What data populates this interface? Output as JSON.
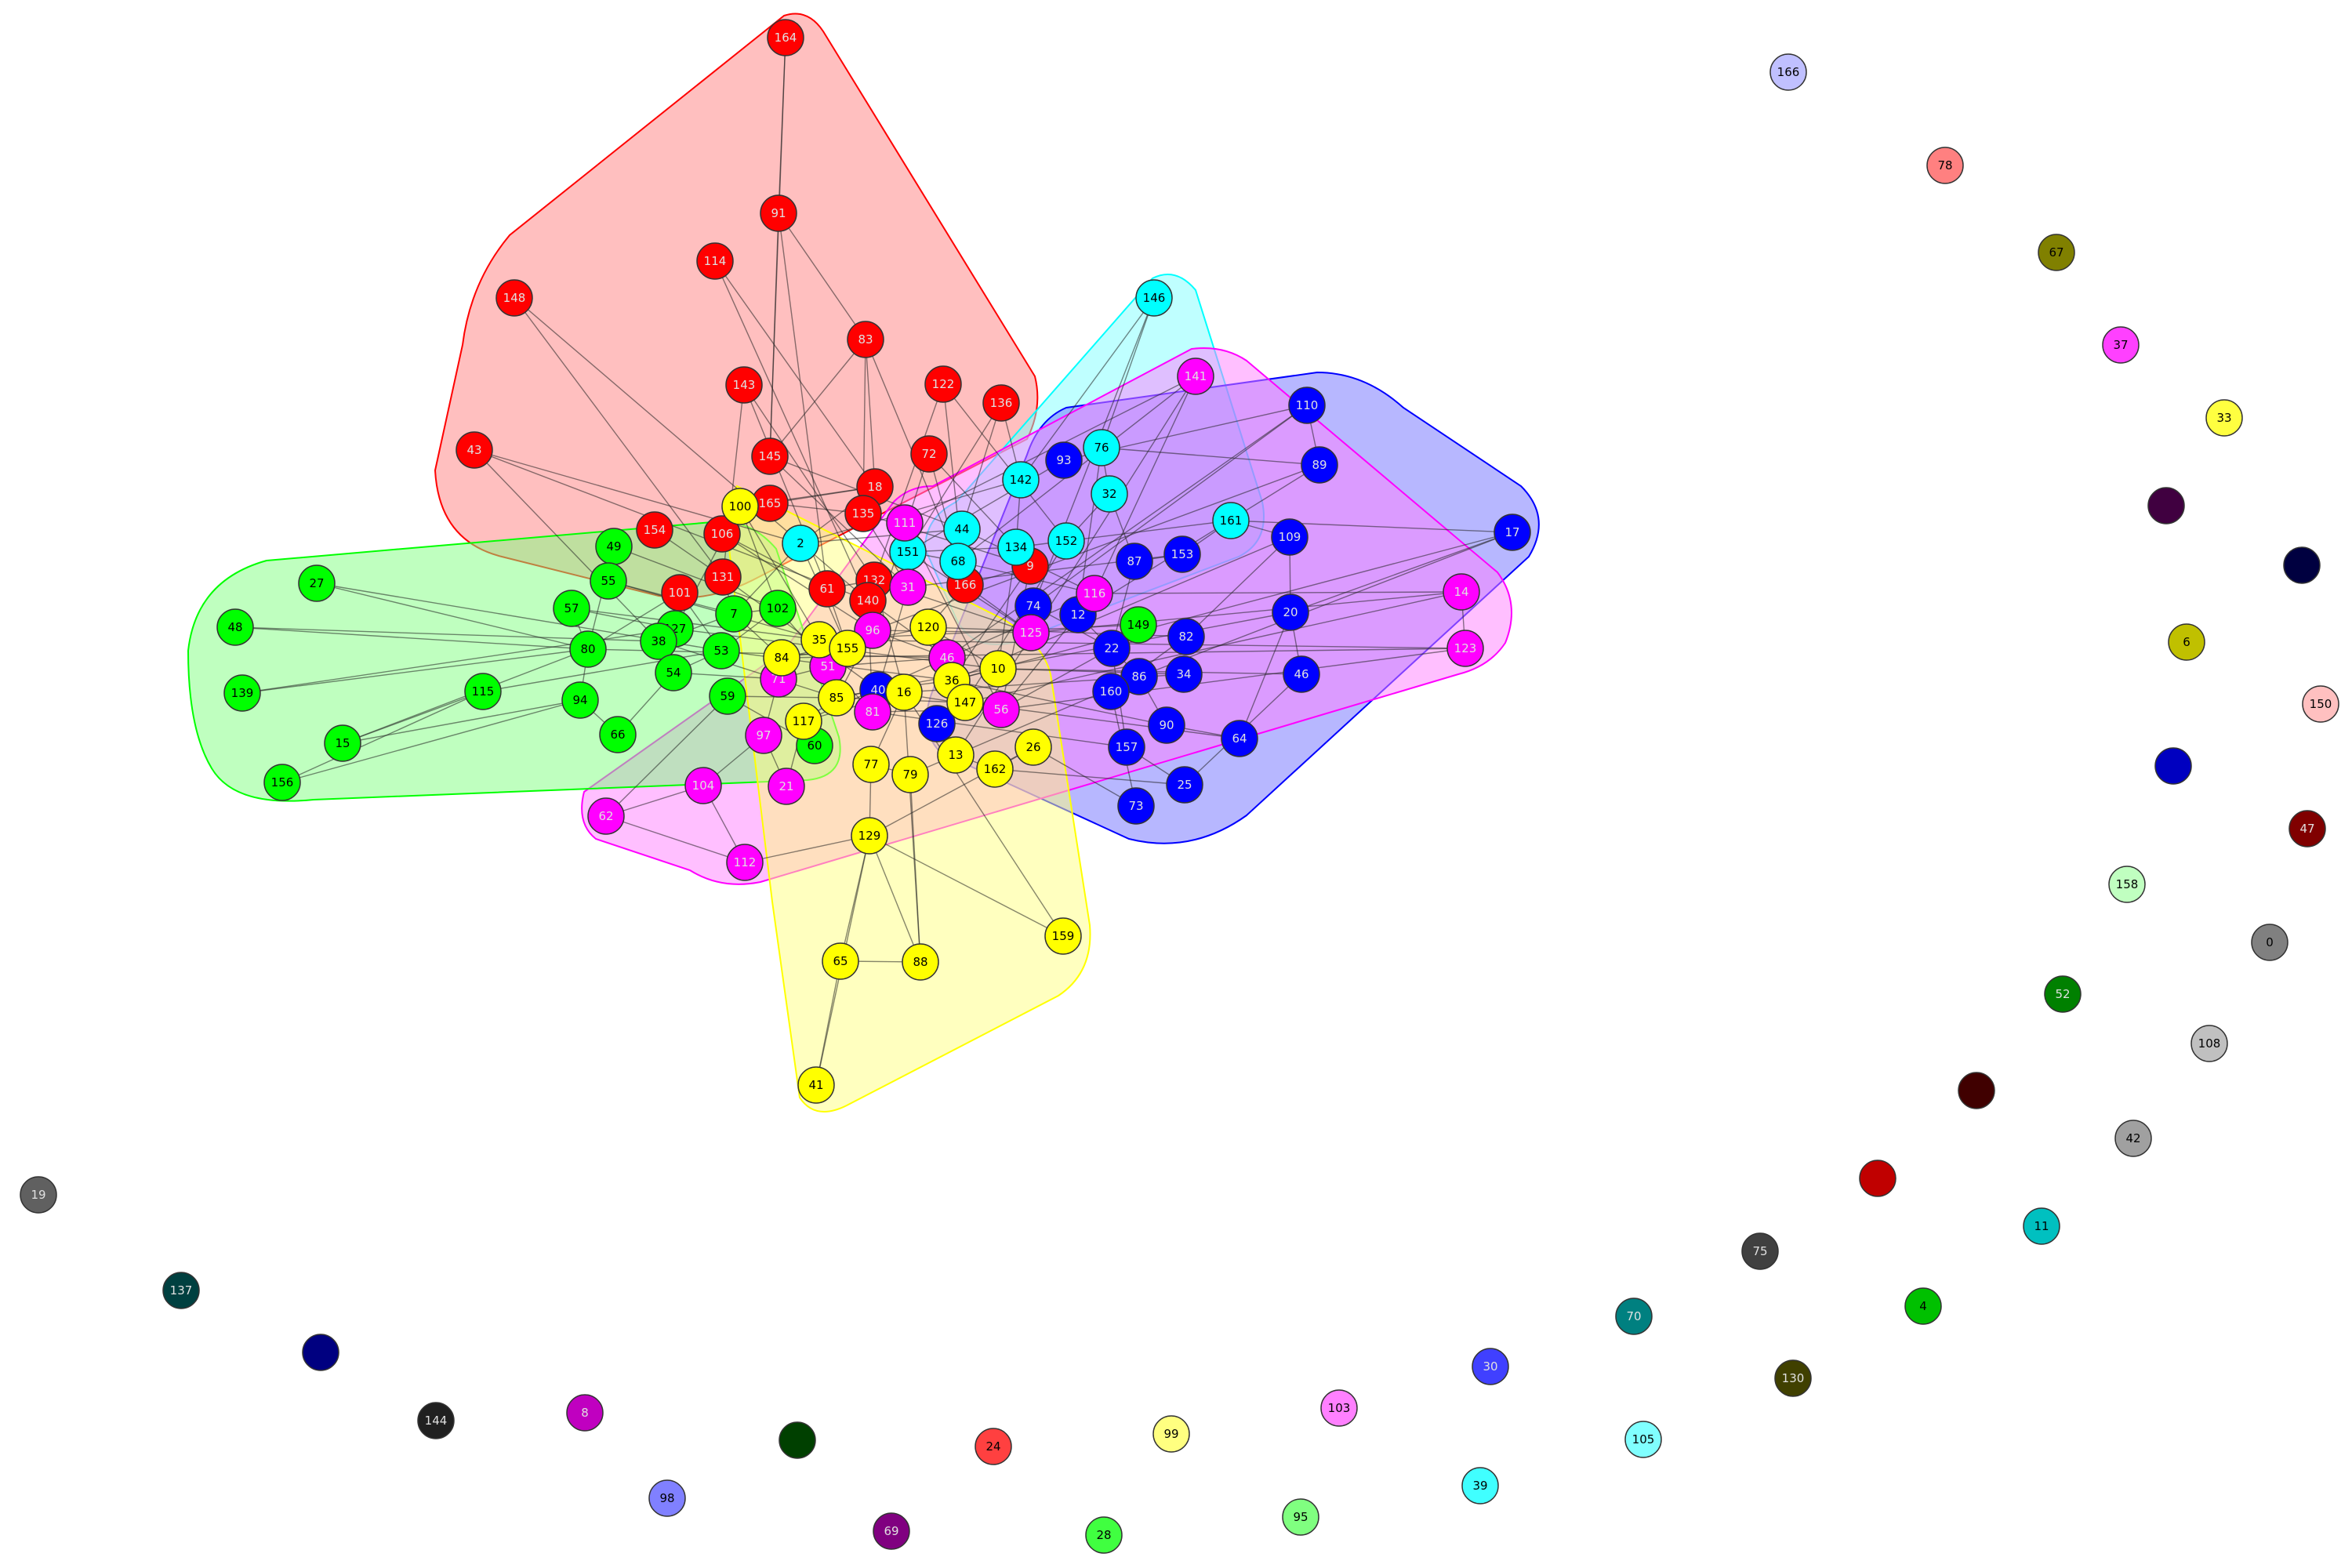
{
  "graph": {
    "type": "community-network",
    "communities": [
      {
        "name": "red",
        "color": "#ff0000",
        "fill": "#ff8080",
        "members": [
          "164",
          "91",
          "114",
          "148",
          "83",
          "143",
          "122",
          "136",
          "43",
          "145",
          "72",
          "18",
          "165",
          "135",
          "154",
          "106",
          "101",
          "131",
          "61",
          "132",
          "140",
          "166",
          "9"
        ]
      },
      {
        "name": "cyan",
        "color": "#00ffff",
        "fill": "#80ffff",
        "members": [
          "146",
          "76",
          "142",
          "32",
          "2",
          "44",
          "68",
          "151",
          "134",
          "152",
          "161"
        ]
      },
      {
        "name": "blue",
        "color": "#0000ff",
        "fill": "#6060ff",
        "members": [
          "110",
          "93",
          "89",
          "17",
          "109",
          "153",
          "87",
          "74",
          "12",
          "20",
          "82",
          "2b",
          "86",
          "46",
          "160",
          "90",
          "157",
          "64",
          "25",
          "73",
          "126"
        ]
      },
      {
        "name": "magenta",
        "color": "#ff00ff",
        "fill": "#ff80ff",
        "members": [
          "141",
          "111",
          "31",
          "116",
          "14",
          "123",
          "125",
          "96",
          "46m",
          "51",
          "71",
          "56",
          "97",
          "104",
          "21",
          "62",
          "112",
          "81"
        ]
      },
      {
        "name": "green",
        "color": "#00ff00",
        "fill": "#80ff80",
        "members": [
          "49",
          "55",
          "27",
          "48",
          "57",
          "80",
          "127",
          "38",
          "7",
          "102",
          "53",
          "54",
          "139",
          "115",
          "94",
          "59",
          "66",
          "15",
          "156",
          "60",
          "149"
        ]
      },
      {
        "name": "yellow",
        "color": "#ffff00",
        "fill": "#ffff80",
        "members": [
          "100",
          "35",
          "155",
          "84",
          "120",
          "10",
          "36",
          "147",
          "85",
          "117",
          "16",
          "77",
          "79",
          "13",
          "162",
          "26",
          "129",
          "65",
          "88",
          "159",
          "41"
        ]
      }
    ],
    "nodes": [
      {
        "id": "164",
        "label": "164",
        "color": "#ff0000"
      },
      {
        "id": "91",
        "label": "91",
        "color": "#ff0000"
      },
      {
        "id": "114",
        "label": "114",
        "color": "#ff0000"
      },
      {
        "id": "148",
        "label": "148",
        "color": "#ff0000"
      },
      {
        "id": "83",
        "label": "83",
        "color": "#ff0000"
      },
      {
        "id": "143",
        "label": "143",
        "color": "#ff0000"
      },
      {
        "id": "122",
        "label": "122",
        "color": "#ff0000"
      },
      {
        "id": "136",
        "label": "136",
        "color": "#ff0000"
      },
      {
        "id": "43",
        "label": "43",
        "color": "#ff0000"
      },
      {
        "id": "145",
        "label": "145",
        "color": "#ff0000"
      },
      {
        "id": "72",
        "label": "72",
        "color": "#ff0000"
      },
      {
        "id": "18",
        "label": "18",
        "color": "#ff0000"
      },
      {
        "id": "165",
        "label": "165",
        "color": "#ff0000"
      },
      {
        "id": "135",
        "label": "135",
        "color": "#ff0000"
      },
      {
        "id": "154",
        "label": "154",
        "color": "#ff0000"
      },
      {
        "id": "106",
        "label": "106",
        "color": "#ff0000"
      },
      {
        "id": "101",
        "label": "101",
        "color": "#ff0000"
      },
      {
        "id": "131",
        "label": "131",
        "color": "#ff0000"
      },
      {
        "id": "61",
        "label": "61",
        "color": "#ff0000"
      },
      {
        "id": "132",
        "label": "132",
        "color": "#ff0000"
      },
      {
        "id": "140",
        "label": "140",
        "color": "#ff0000"
      },
      {
        "id": "166r",
        "label": "166",
        "color": "#ff0000"
      },
      {
        "id": "9",
        "label": "9",
        "color": "#ff0000"
      },
      {
        "id": "146",
        "label": "146",
        "color": "#00ffff"
      },
      {
        "id": "76",
        "label": "76",
        "color": "#00ffff"
      },
      {
        "id": "142",
        "label": "142",
        "color": "#00ffff"
      },
      {
        "id": "32",
        "label": "32",
        "color": "#00ffff"
      },
      {
        "id": "2",
        "label": "2",
        "color": "#00ffff"
      },
      {
        "id": "44",
        "label": "44",
        "color": "#00ffff"
      },
      {
        "id": "68",
        "label": "68",
        "color": "#00ffff"
      },
      {
        "id": "151",
        "label": "151",
        "color": "#00ffff"
      },
      {
        "id": "134",
        "label": "134",
        "color": "#00ffff"
      },
      {
        "id": "152",
        "label": "152",
        "color": "#00ffff"
      },
      {
        "id": "161",
        "label": "161",
        "color": "#00ffff"
      },
      {
        "id": "110",
        "label": "110",
        "color": "#0000ff"
      },
      {
        "id": "93",
        "label": "93",
        "color": "#0000ff"
      },
      {
        "id": "89",
        "label": "89",
        "color": "#0000ff"
      },
      {
        "id": "17",
        "label": "17",
        "color": "#0000ff"
      },
      {
        "id": "109",
        "label": "109",
        "color": "#0000ff"
      },
      {
        "id": "153",
        "label": "153",
        "color": "#0000ff"
      },
      {
        "id": "87",
        "label": "87",
        "color": "#0000ff"
      },
      {
        "id": "74",
        "label": "74",
        "color": "#0000ff"
      },
      {
        "id": "12",
        "label": "12",
        "color": "#0000ff"
      },
      {
        "id": "20",
        "label": "20",
        "color": "#0000ff"
      },
      {
        "id": "82",
        "label": "82",
        "color": "#0000ff"
      },
      {
        "id": "22",
        "label": "22",
        "color": "#0000ff"
      },
      {
        "id": "86",
        "label": "86",
        "color": "#0000ff"
      },
      {
        "id": "46b",
        "label": "46",
        "color": "#0000ff"
      },
      {
        "id": "160",
        "label": "160",
        "color": "#0000ff"
      },
      {
        "id": "90",
        "label": "90",
        "color": "#0000ff"
      },
      {
        "id": "157",
        "label": "157",
        "color": "#0000ff"
      },
      {
        "id": "64",
        "label": "64",
        "color": "#0000ff"
      },
      {
        "id": "25",
        "label": "25",
        "color": "#0000ff"
      },
      {
        "id": "73",
        "label": "73",
        "color": "#0000ff"
      },
      {
        "id": "126",
        "label": "126",
        "color": "#0000ff"
      },
      {
        "id": "40",
        "label": "40",
        "color": "#0000ff"
      },
      {
        "id": "34",
        "label": "34",
        "color": "#0000ff"
      },
      {
        "id": "141",
        "label": "141",
        "color": "#ff00ff"
      },
      {
        "id": "111",
        "label": "111",
        "color": "#ff00ff"
      },
      {
        "id": "31",
        "label": "31",
        "color": "#ff00ff"
      },
      {
        "id": "116",
        "label": "116",
        "color": "#ff00ff"
      },
      {
        "id": "14",
        "label": "14",
        "color": "#ff00ff"
      },
      {
        "id": "123",
        "label": "123",
        "color": "#ff00ff"
      },
      {
        "id": "125",
        "label": "125",
        "color": "#ff00ff"
      },
      {
        "id": "96",
        "label": "96",
        "color": "#ff00ff"
      },
      {
        "id": "46",
        "label": "46",
        "color": "#ff00ff"
      },
      {
        "id": "51",
        "label": "51",
        "color": "#ff00ff"
      },
      {
        "id": "71",
        "label": "71",
        "color": "#ff00ff"
      },
      {
        "id": "56",
        "label": "56",
        "color": "#ff00ff"
      },
      {
        "id": "97",
        "label": "97",
        "color": "#ff00ff"
      },
      {
        "id": "104",
        "label": "104",
        "color": "#ff00ff"
      },
      {
        "id": "21",
        "label": "21",
        "color": "#ff00ff"
      },
      {
        "id": "62",
        "label": "62",
        "color": "#ff00ff"
      },
      {
        "id": "112",
        "label": "112",
        "color": "#ff00ff"
      },
      {
        "id": "81",
        "label": "81",
        "color": "#ff00ff"
      },
      {
        "id": "49",
        "label": "49",
        "color": "#00ff00"
      },
      {
        "id": "55",
        "label": "55",
        "color": "#00ff00"
      },
      {
        "id": "27",
        "label": "27",
        "color": "#00ff00"
      },
      {
        "id": "48",
        "label": "48",
        "color": "#00ff00"
      },
      {
        "id": "57",
        "label": "57",
        "color": "#00ff00"
      },
      {
        "id": "80",
        "label": "80",
        "color": "#00ff00"
      },
      {
        "id": "127",
        "label": "127",
        "color": "#00ff00"
      },
      {
        "id": "38",
        "label": "38",
        "color": "#00ff00"
      },
      {
        "id": "7",
        "label": "7",
        "color": "#00ff00"
      },
      {
        "id": "102",
        "label": "102",
        "color": "#00ff00"
      },
      {
        "id": "53",
        "label": "53",
        "color": "#00ff00"
      },
      {
        "id": "54",
        "label": "54",
        "color": "#00ff00"
      },
      {
        "id": "139",
        "label": "139",
        "color": "#00ff00"
      },
      {
        "id": "115",
        "label": "115",
        "color": "#00ff00"
      },
      {
        "id": "94",
        "label": "94",
        "color": "#00ff00"
      },
      {
        "id": "59",
        "label": "59",
        "color": "#00ff00"
      },
      {
        "id": "66",
        "label": "66",
        "color": "#00ff00"
      },
      {
        "id": "15",
        "label": "15",
        "color": "#00ff00"
      },
      {
        "id": "156",
        "label": "156",
        "color": "#00ff00"
      },
      {
        "id": "60",
        "label": "60",
        "color": "#00ff00"
      },
      {
        "id": "149",
        "label": "149",
        "color": "#00ff00"
      },
      {
        "id": "100",
        "label": "100",
        "color": "#ffff00"
      },
      {
        "id": "35",
        "label": "35",
        "color": "#ffff00"
      },
      {
        "id": "155",
        "label": "155",
        "color": "#ffff00"
      },
      {
        "id": "84",
        "label": "84",
        "color": "#ffff00"
      },
      {
        "id": "120",
        "label": "120",
        "color": "#ffff00"
      },
      {
        "id": "10",
        "label": "10",
        "color": "#ffff00"
      },
      {
        "id": "36",
        "label": "36",
        "color": "#ffff00"
      },
      {
        "id": "147",
        "label": "147",
        "color": "#ffff00"
      },
      {
        "id": "85",
        "label": "85",
        "color": "#ffff00"
      },
      {
        "id": "117",
        "label": "117",
        "color": "#ffff00"
      },
      {
        "id": "16",
        "label": "16",
        "color": "#ffff00"
      },
      {
        "id": "77",
        "label": "77",
        "color": "#ffff00"
      },
      {
        "id": "79",
        "label": "79",
        "color": "#ffff00"
      },
      {
        "id": "13",
        "label": "13",
        "color": "#ffff00"
      },
      {
        "id": "162",
        "label": "162",
        "color": "#ffff00"
      },
      {
        "id": "26",
        "label": "26",
        "color": "#ffff00"
      },
      {
        "id": "129",
        "label": "129",
        "color": "#ffff00"
      },
      {
        "id": "65",
        "label": "65",
        "color": "#ffff00"
      },
      {
        "id": "88",
        "label": "88",
        "color": "#ffff00"
      },
      {
        "id": "159",
        "label": "159",
        "color": "#ffff00"
      },
      {
        "id": "41",
        "label": "41",
        "color": "#ffff00"
      },
      {
        "id": "166",
        "label": "166",
        "color": "#c0c0ff"
      },
      {
        "id": "78",
        "label": "78",
        "color": "#ff8080"
      },
      {
        "id": "67",
        "label": "67",
        "color": "#808000"
      },
      {
        "id": "37",
        "label": "37",
        "color": "#ff40ff"
      },
      {
        "id": "33",
        "label": "33",
        "color": "#ffff40"
      },
      {
        "id": "i1",
        "label": "",
        "color": "#400040"
      },
      {
        "id": "i2",
        "label": "",
        "color": "#000040"
      },
      {
        "id": "6",
        "label": "6",
        "color": "#c0c000"
      },
      {
        "id": "150",
        "label": "150",
        "color": "#ffc0c0"
      },
      {
        "id": "i3",
        "label": "",
        "color": "#0000c0"
      },
      {
        "id": "47",
        "label": "47",
        "color": "#800000"
      },
      {
        "id": "158",
        "label": "158",
        "color": "#c0ffc0"
      },
      {
        "id": "0",
        "label": "0",
        "color": "#808080"
      },
      {
        "id": "52",
        "label": "52",
        "color": "#008000"
      },
      {
        "id": "108",
        "label": "108",
        "color": "#c0c0c0"
      },
      {
        "id": "i4",
        "label": "",
        "color": "#400000"
      },
      {
        "id": "42",
        "label": "42",
        "color": "#a0a0a0"
      },
      {
        "id": "i5",
        "label": "",
        "color": "#c00000"
      },
      {
        "id": "11",
        "label": "11",
        "color": "#00c0c0"
      },
      {
        "id": "75",
        "label": "75",
        "color": "#404040"
      },
      {
        "id": "4",
        "label": "4",
        "color": "#00c000"
      },
      {
        "id": "70",
        "label": "70",
        "color": "#008080"
      },
      {
        "id": "130",
        "label": "130",
        "color": "#404000"
      },
      {
        "id": "30",
        "label": "30",
        "color": "#4040ff"
      },
      {
        "id": "105",
        "label": "105",
        "color": "#80ffff"
      },
      {
        "id": "103",
        "label": "103",
        "color": "#ff80ff"
      },
      {
        "id": "39",
        "label": "39",
        "color": "#40ffff"
      },
      {
        "id": "99",
        "label": "99",
        "color": "#ffff80"
      },
      {
        "id": "95",
        "label": "95",
        "color": "#80ff80"
      },
      {
        "id": "24",
        "label": "24",
        "color": "#ff4040"
      },
      {
        "id": "28",
        "label": "28",
        "color": "#40ff40"
      },
      {
        "id": "i6",
        "label": "",
        "color": "#004000"
      },
      {
        "id": "69",
        "label": "69",
        "color": "#800080"
      },
      {
        "id": "98",
        "label": "98",
        "color": "#8080ff"
      },
      {
        "id": "8",
        "label": "8",
        "color": "#c000c0"
      },
      {
        "id": "144",
        "label": "144",
        "color": "#202020"
      },
      {
        "id": "i7",
        "label": "",
        "color": "#000080"
      },
      {
        "id": "137",
        "label": "137",
        "color": "#004040"
      },
      {
        "id": "19",
        "label": "19",
        "color": "#606060"
      }
    ]
  }
}
